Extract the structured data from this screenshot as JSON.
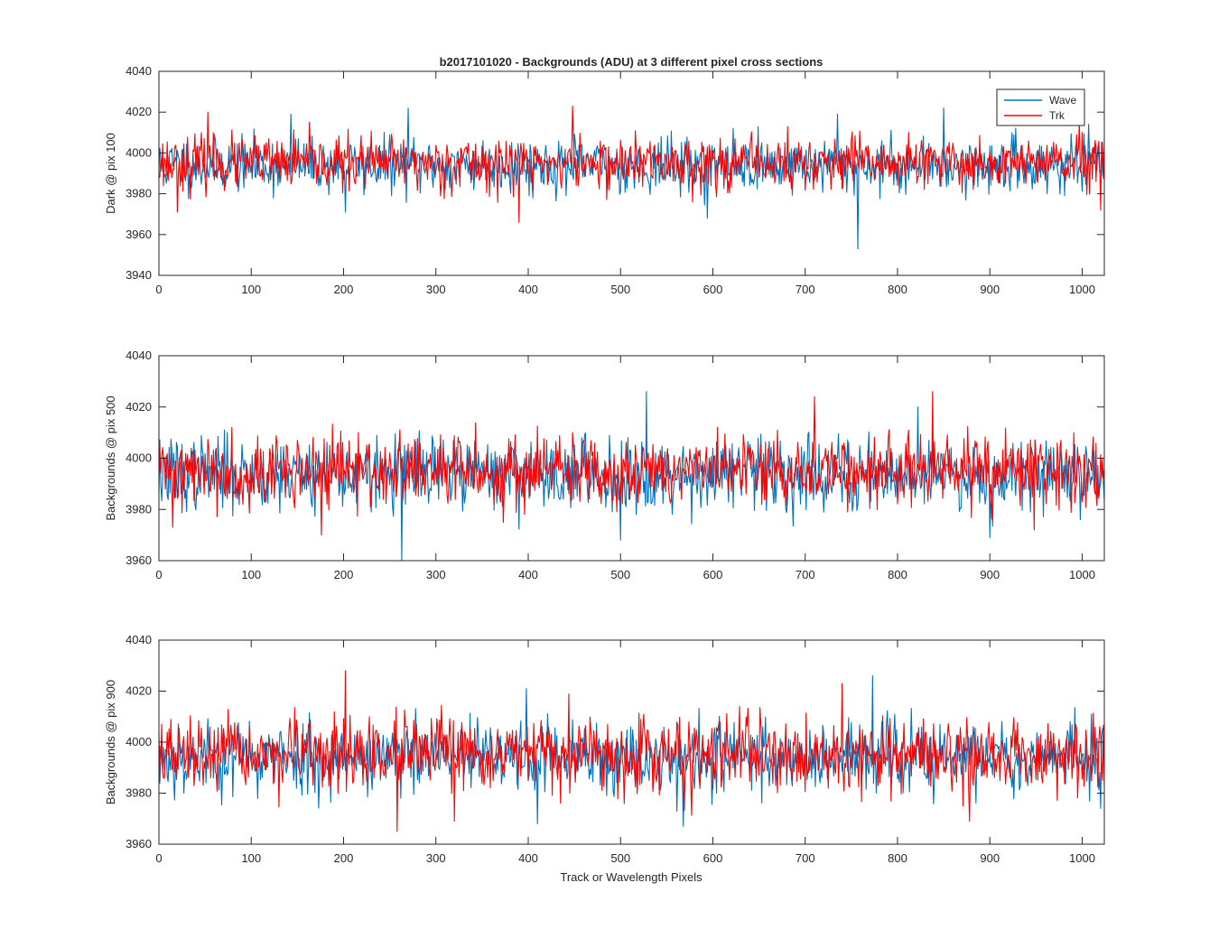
{
  "figure": {
    "title": "b2017101020 - Backgrounds (ADU) at 3 different pixel cross sections",
    "xlabel": "Track or Wavelength Pixels"
  },
  "legend": {
    "placement": "top-right of first panel",
    "entries": [
      {
        "name": "Wave",
        "color": "#0072bd"
      },
      {
        "name": "Trk",
        "color": "#ff0000"
      }
    ]
  },
  "colors": {
    "wave": "#0072bd",
    "trk": "#ff0000",
    "axes": "#262626",
    "background": "#ffffff"
  },
  "chart_data": [
    {
      "type": "line",
      "ylabel": "Dark @ pix 100",
      "xlim": [
        0,
        1024
      ],
      "ylim": [
        3940,
        4040
      ],
      "xticks": [
        0,
        100,
        200,
        300,
        400,
        500,
        600,
        700,
        800,
        900,
        1000
      ],
      "yticks": [
        3940,
        3960,
        3980,
        4000,
        4020,
        4040
      ],
      "grid": false,
      "series": [
        {
          "name": "Wave",
          "color": "#0072bd",
          "mean": 3994,
          "spread": 6.5,
          "seed": 11,
          "spikes": [
            [
              143,
              4019
            ],
            [
              270,
              4022
            ],
            [
              757,
              3953
            ],
            [
              735,
              4019
            ],
            [
              850,
              4022
            ],
            [
              594,
              3968
            ],
            [
              202,
              3971
            ]
          ]
        },
        {
          "name": "Trk",
          "color": "#ff0000",
          "mean": 3995,
          "spread": 6.5,
          "seed": 23,
          "spikes": [
            [
              53,
              4020
            ],
            [
              448,
              4023
            ],
            [
              390,
              3966
            ],
            [
              20,
              3971
            ],
            [
              1020,
              3972
            ]
          ]
        }
      ]
    },
    {
      "type": "line",
      "ylabel": "Backgrounds @ pix 500",
      "xlim": [
        0,
        1024
      ],
      "ylim": [
        3960,
        4040
      ],
      "xticks": [
        0,
        100,
        200,
        300,
        400,
        500,
        600,
        700,
        800,
        900,
        1000
      ],
      "yticks": [
        3960,
        3980,
        4000,
        4020,
        4040
      ],
      "grid": false,
      "series": [
        {
          "name": "Wave",
          "color": "#0072bd",
          "mean": 3994,
          "spread": 7,
          "seed": 37,
          "spikes": [
            [
              263,
              3960
            ],
            [
              528,
              4026
            ],
            [
              822,
              4020
            ],
            [
              500,
              3968
            ],
            [
              900,
              3969
            ]
          ]
        },
        {
          "name": "Trk",
          "color": "#ff0000",
          "mean": 3995,
          "spread": 7,
          "seed": 41,
          "spikes": [
            [
              710,
              4024
            ],
            [
              838,
              4026
            ],
            [
              176,
              3970
            ],
            [
              15,
              3973
            ],
            [
              948,
              3972
            ]
          ]
        }
      ]
    },
    {
      "type": "line",
      "ylabel": "Backgrounds @ pix 900",
      "xlim": [
        0,
        1024
      ],
      "ylim": [
        3960,
        4040
      ],
      "xticks": [
        0,
        100,
        200,
        300,
        400,
        500,
        600,
        700,
        800,
        900,
        1000
      ],
      "yticks": [
        3960,
        3980,
        4000,
        4020,
        4040
      ],
      "grid": false,
      "series": [
        {
          "name": "Wave",
          "color": "#0072bd",
          "mean": 3994,
          "spread": 7,
          "seed": 53,
          "spikes": [
            [
              568,
              4027
            ],
            [
              773,
              4026
            ],
            [
              398,
              4021
            ],
            [
              410,
              3968
            ],
            [
              568,
              3967
            ]
          ]
        },
        {
          "name": "Trk",
          "color": "#ff0000",
          "mean": 3995,
          "spread": 7,
          "seed": 67,
          "spikes": [
            [
              202,
              4028
            ],
            [
              258,
              3965
            ],
            [
              878,
              3969
            ],
            [
              740,
              4023
            ],
            [
              320,
              3969
            ]
          ]
        }
      ]
    }
  ]
}
